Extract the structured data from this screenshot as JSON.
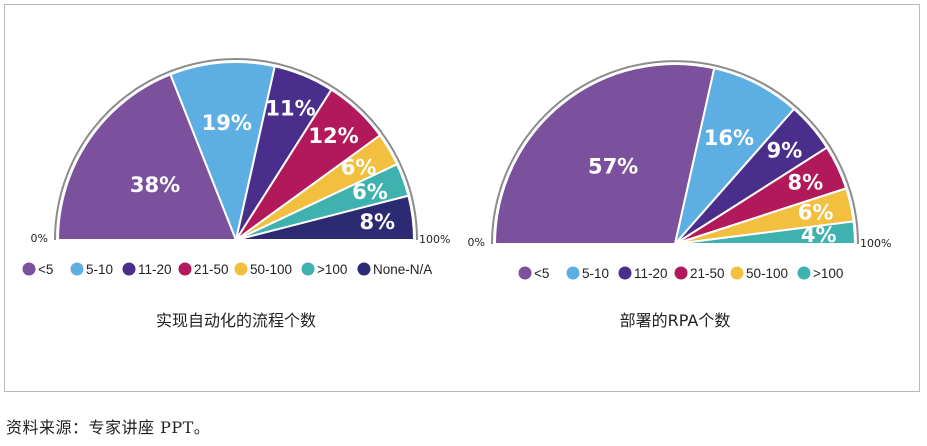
{
  "source_note": "资料来源：专家讲座 PPT。",
  "chart_data": [
    {
      "type": "pie",
      "title": "实现自动化的流程个数",
      "start_label": "0%",
      "end_label": "100%",
      "categories": [
        "<5",
        "5-10",
        "11-20",
        "21-50",
        "50-100",
        ">100",
        "None-N/A"
      ],
      "values": [
        38,
        19,
        11,
        12,
        6,
        6,
        8
      ],
      "value_labels": [
        "38%",
        "19%",
        "11%",
        "12%",
        "6%",
        "6%",
        "8%"
      ],
      "colors": [
        "#7b519d",
        "#5dafe3",
        "#4a2e8c",
        "#b2195a",
        "#f2bf3f",
        "#3fb2b0",
        "#2b2a72"
      ],
      "legend_placement": "bottom"
    },
    {
      "type": "pie",
      "title": "部署的RPA个数",
      "start_label": "0%",
      "end_label": "100%",
      "categories": [
        "<5",
        "5-10",
        "11-20",
        "21-50",
        "50-100",
        ">100"
      ],
      "values": [
        57,
        16,
        9,
        8,
        6,
        4
      ],
      "value_labels": [
        "57%",
        "16%",
        "9%",
        "8%",
        "6%",
        "4%"
      ],
      "colors": [
        "#7b519d",
        "#5dafe3",
        "#4a2e8c",
        "#b2195a",
        "#f2bf3f",
        "#3fb2b0"
      ],
      "legend_placement": "bottom"
    }
  ]
}
